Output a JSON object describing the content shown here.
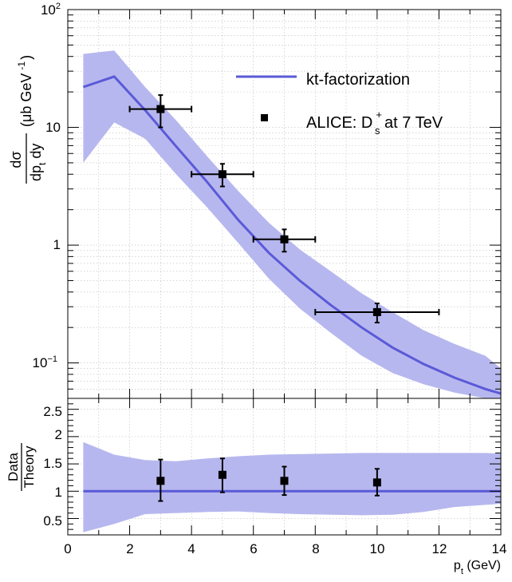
{
  "chart_data": [
    {
      "type": "line",
      "panel": "top",
      "yscale": "log",
      "xlim": [
        0,
        14
      ],
      "ylim": [
        0.05,
        100
      ],
      "grid": true,
      "ylabel": {
        "frac_num": "dσ",
        "frac_den": "dp",
        "frac_den_sub": "t",
        "frac_den_tail": " dy",
        "unit_open": "(",
        "unit_main": "μb GeV",
        "unit_sup": "-1",
        "unit_close": ")"
      },
      "y_tick_labels": {
        "t100": "10",
        "t100_exp": "2",
        "t10": "10",
        "t1": "1",
        "t01": "10",
        "t01_exp": "−1"
      },
      "legend": {
        "placement": "top-right",
        "theory_label": "kt-factorization",
        "data_label_main": "ALICE: D",
        "data_label_sub": "s",
        "data_label_sup": "+",
        "data_label_tail": " at 7 TeV"
      },
      "theory": {
        "x": [
          0.5,
          1.5,
          2.5,
          3.5,
          4.5,
          5.5,
          6.5,
          7.5,
          8.5,
          9.5,
          10.5,
          11.5,
          12.5,
          13.5,
          14.0
        ],
        "y": [
          22,
          27,
          14,
          6.9,
          3.45,
          1.65,
          0.86,
          0.5,
          0.31,
          0.2,
          0.135,
          0.098,
          0.075,
          0.06,
          0.055
        ],
        "upper": [
          42,
          45,
          22,
          11.5,
          5.7,
          2.9,
          1.55,
          0.92,
          0.6,
          0.39,
          0.27,
          0.19,
          0.145,
          0.115,
          0.09
        ],
        "lower": [
          5,
          11,
          8,
          4.0,
          2.1,
          1.05,
          0.52,
          0.29,
          0.18,
          0.115,
          0.082,
          0.066,
          0.056,
          0.05,
          0.05
        ]
      },
      "data_points": [
        {
          "x": 3.0,
          "y": 14.3,
          "xerr": 1.0,
          "ylo": 10.0,
          "yhi": 18.8
        },
        {
          "x": 5.0,
          "y": 4.0,
          "xerr": 1.0,
          "ylo": 3.15,
          "yhi": 4.9
        },
        {
          "x": 7.0,
          "y": 1.12,
          "xerr": 1.0,
          "ylo": 0.88,
          "yhi": 1.36
        },
        {
          "x": 10.0,
          "y": 0.27,
          "xerr": 2.0,
          "ylo": 0.22,
          "yhi": 0.32
        }
      ]
    },
    {
      "type": "line",
      "panel": "ratio",
      "xlim": [
        0,
        14
      ],
      "ylim": [
        0.2,
        2.7
      ],
      "grid": true,
      "xlabel_main": "p",
      "xlabel_sub": "t",
      "xlabel_tail": " (GeV)",
      "ylabel_num": "Data",
      "ylabel_den": "Theory",
      "x_ticks": [
        "0",
        "2",
        "4",
        "6",
        "8",
        "10",
        "12",
        "14"
      ],
      "y_ticks": [
        "0.5",
        "1",
        "1.5",
        "2",
        "2.5"
      ],
      "band": {
        "x": [
          0.5,
          1.5,
          2.5,
          3.5,
          4.5,
          5.5,
          6.5,
          7.5,
          8.5,
          9.5,
          10.5,
          11.5,
          12.5,
          13.5,
          14.0
        ],
        "upper": [
          1.9,
          1.67,
          1.57,
          1.55,
          1.6,
          1.64,
          1.67,
          1.68,
          1.69,
          1.7,
          1.7,
          1.7,
          1.7,
          1.7,
          1.69
        ],
        "lower": [
          0.25,
          0.4,
          0.58,
          0.6,
          0.62,
          0.63,
          0.6,
          0.58,
          0.57,
          0.56,
          0.57,
          0.62,
          0.71,
          0.75,
          0.77
        ]
      },
      "line_value": 1.0,
      "data_points": [
        {
          "x": 3.0,
          "y": 1.19,
          "ylo": 0.82,
          "yhi": 1.58
        },
        {
          "x": 5.0,
          "y": 1.3,
          "ylo": 0.98,
          "yhi": 1.6
        },
        {
          "x": 7.0,
          "y": 1.19,
          "ylo": 0.93,
          "yhi": 1.45
        },
        {
          "x": 10.0,
          "y": 1.16,
          "ylo": 0.92,
          "yhi": 1.41
        }
      ]
    }
  ]
}
